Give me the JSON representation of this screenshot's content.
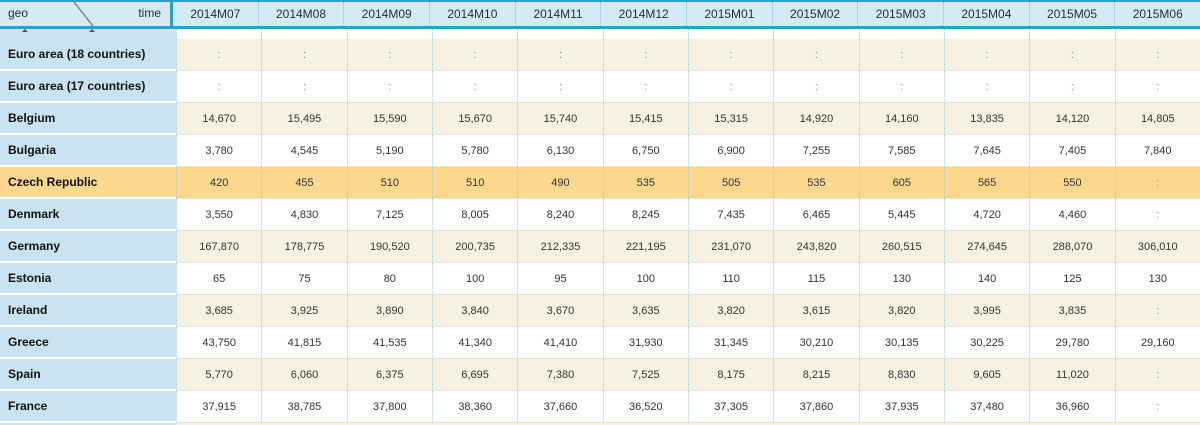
{
  "table": {
    "corner": {
      "row_axis": "geo",
      "col_axis": "time"
    },
    "columns": [
      "2014M07",
      "2014M08",
      "2014M09",
      "2014M10",
      "2014M11",
      "2014M12",
      "2015M01",
      "2015M02",
      "2015M03",
      "2015M04",
      "2015M05",
      "2015M06"
    ],
    "missing_symbol": ":",
    "rows": [
      {
        "label": "Euro area (18 countries)",
        "style": "beige",
        "values": [
          ":",
          ":",
          ":",
          ":",
          ":",
          ":",
          ":",
          ":",
          ":",
          ":",
          ":",
          ":"
        ]
      },
      {
        "label": "Euro area (17 countries)",
        "style": "white",
        "values": [
          ":",
          ":",
          ":",
          ":",
          ":",
          ":",
          ":",
          ":",
          ":",
          ":",
          ":",
          ":"
        ]
      },
      {
        "label": "Belgium",
        "style": "beige",
        "values": [
          "14,670",
          "15,495",
          "15,590",
          "15,670",
          "15,740",
          "15,415",
          "15,315",
          "14,920",
          "14,160",
          "13,835",
          "14,120",
          "14,805"
        ]
      },
      {
        "label": "Bulgaria",
        "style": "white",
        "values": [
          "3,780",
          "4,545",
          "5,190",
          "5,780",
          "6,130",
          "6,750",
          "6,900",
          "7,255",
          "7,585",
          "7,645",
          "7,405",
          "7,840"
        ]
      },
      {
        "label": "Czech Republic",
        "style": "highlight",
        "values": [
          "420",
          "455",
          "510",
          "510",
          "490",
          "535",
          "505",
          "535",
          "605",
          "565",
          "550",
          ":"
        ]
      },
      {
        "label": "Denmark",
        "style": "white",
        "values": [
          "3,550",
          "4,830",
          "7,125",
          "8,005",
          "8,240",
          "8,245",
          "7,435",
          "6,465",
          "5,445",
          "4,720",
          "4,460",
          ":"
        ]
      },
      {
        "label": "Germany",
        "style": "beige",
        "values": [
          "167,870",
          "178,775",
          "190,520",
          "200,735",
          "212,335",
          "221,195",
          "231,070",
          "243,820",
          "260,515",
          "274,645",
          "288,070",
          "306,010"
        ]
      },
      {
        "label": "Estonia",
        "style": "white",
        "values": [
          "65",
          "75",
          "80",
          "100",
          "95",
          "100",
          "110",
          "115",
          "130",
          "140",
          "125",
          "130"
        ]
      },
      {
        "label": "Ireland",
        "style": "beige",
        "values": [
          "3,685",
          "3,925",
          "3,890",
          "3,840",
          "3,670",
          "3,635",
          "3,820",
          "3,615",
          "3,820",
          "3,995",
          "3,835",
          ":"
        ]
      },
      {
        "label": "Greece",
        "style": "white",
        "values": [
          "43,750",
          "41,815",
          "41,535",
          "41,340",
          "41,410",
          "31,930",
          "31,345",
          "30,210",
          "30,135",
          "30,225",
          "29,780",
          "29,160"
        ]
      },
      {
        "label": "Spain",
        "style": "beige",
        "values": [
          "5,770",
          "6,060",
          "6,375",
          "6,695",
          "7,380",
          "7,525",
          "8,175",
          "8,215",
          "8,830",
          "9,605",
          "11,020",
          ":"
        ]
      },
      {
        "label": "France",
        "style": "white",
        "values": [
          "37,915",
          "38,785",
          "37,800",
          "38,360",
          "37,660",
          "36,520",
          "37,305",
          "37,860",
          "37,935",
          "37,480",
          "36,960",
          ":"
        ]
      }
    ],
    "colors": {
      "border_blue": "#2a9fd0",
      "header_bg": "#d4eaf5",
      "row_label_bg": "#c9e3f0",
      "stripe_beige": "#f6f2e2",
      "stripe_white": "#ffffff",
      "highlight_orange": "#fbd88e",
      "missing_text": "#8c8c8c"
    }
  }
}
